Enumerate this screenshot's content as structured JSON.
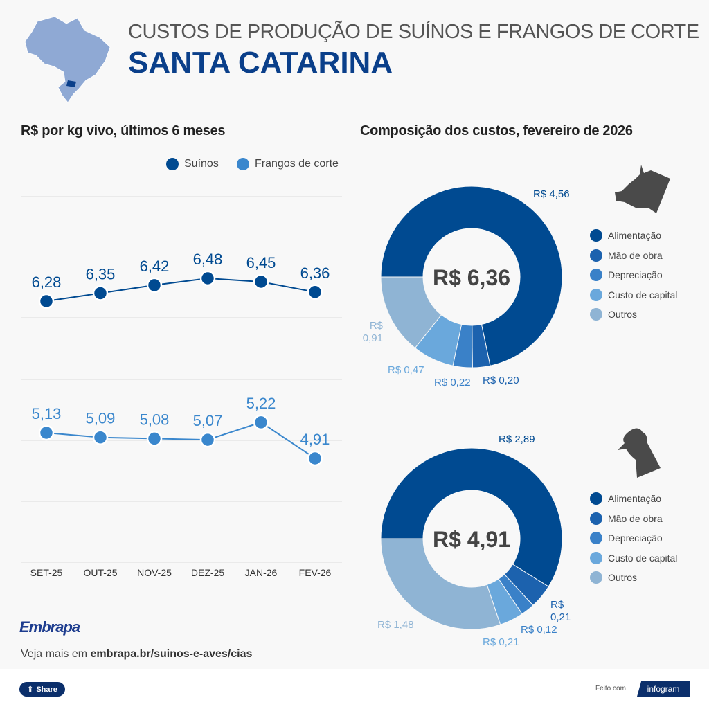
{
  "header": {
    "title": "CUSTOS DE PRODUÇÃO DE SUÍNOS E FRANGOS DE CORTE",
    "state": "SANTA CATARINA"
  },
  "colors": {
    "dark": "#004a91",
    "labor": "#1c62ae",
    "depr": "#3a81c8",
    "capital": "#6aa8dc",
    "other": "#8fb4d4",
    "chicken_line": "#3a87cd"
  },
  "chart_data": [
    {
      "type": "line",
      "title": "R$ por kg vivo, últimos 6 meses",
      "categories": [
        "SET-25",
        "OUT-25",
        "NOV-25",
        "DEZ-25",
        "JAN-26",
        "FEV-26"
      ],
      "legend_position": "top-right",
      "grid": true,
      "series": [
        {
          "name": "Suínos",
          "values": [
            6.28,
            6.35,
            6.42,
            6.48,
            6.45,
            6.36
          ],
          "labels": [
            "6,28",
            "6,35",
            "6,42",
            "6,48",
            "6,45",
            "6,36"
          ]
        },
        {
          "name": "Frangos de corte",
          "values": [
            5.13,
            5.09,
            5.08,
            5.07,
            5.22,
            4.91
          ],
          "labels": [
            "5,13",
            "5,09",
            "5,08",
            "5,07",
            "5,22",
            "4,91"
          ]
        }
      ]
    },
    {
      "type": "pie",
      "title": "Composição dos custos, fevereiro de 2026",
      "icon": "pig-icon",
      "total_label": "R$ 6,36",
      "categories": [
        "Alimentação",
        "Mão de obra",
        "Depreciação",
        "Custo de capital",
        "Outros"
      ],
      "values": [
        4.56,
        0.2,
        0.22,
        0.47,
        0.91
      ],
      "labels": [
        "R$ 4,56",
        "R$ 0,20",
        "R$ 0,22",
        "R$ 0,47",
        "R$ 0,91"
      ]
    },
    {
      "type": "pie",
      "icon": "chicken-icon",
      "total_label": "R$ 4,91",
      "categories": [
        "Alimentação",
        "Mão de obra",
        "Depreciação",
        "Custo de capital",
        "Outros"
      ],
      "values": [
        2.89,
        0.21,
        0.12,
        0.21,
        1.48
      ],
      "labels": [
        "R$ 2,89",
        "R$ 0,21",
        "R$ 0,12",
        "R$ 0,21",
        "R$ 1,48"
      ]
    }
  ],
  "footer": {
    "logo": "Embrapa",
    "more_prefix": "Veja mais em ",
    "more_link": "embrapa.br/suinos-e-aves/cias",
    "share": "Share",
    "made_with": "Feito com",
    "brand": "infogram"
  }
}
